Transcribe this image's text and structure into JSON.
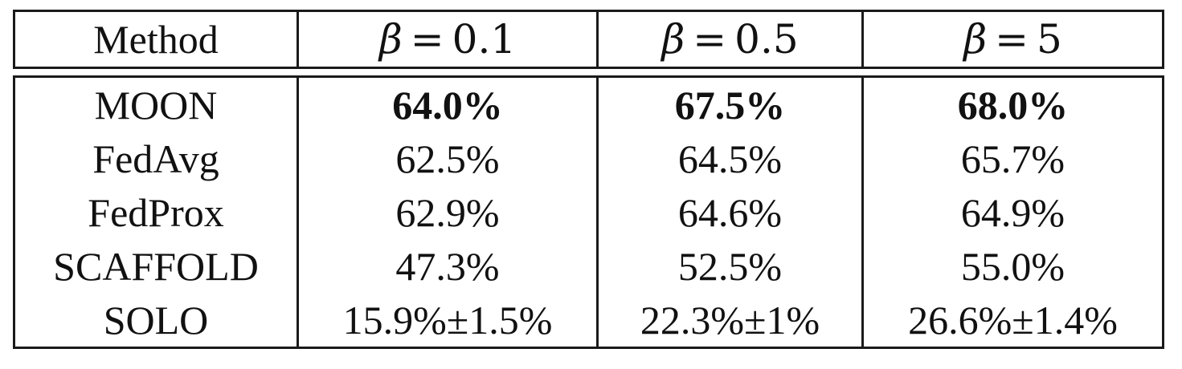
{
  "table": {
    "header": {
      "method": "Method",
      "beta_symbol": "β",
      "equals": "=",
      "beta_values": [
        "0.1",
        "0.5",
        "5"
      ]
    },
    "rows": [
      {
        "method": "MOON",
        "values": [
          "64.0%",
          "67.5%",
          "68.0%"
        ],
        "bold": true
      },
      {
        "method": "FedAvg",
        "values": [
          "62.5%",
          "64.5%",
          "65.7%"
        ],
        "bold": false
      },
      {
        "method": "FedProx",
        "values": [
          "62.9%",
          "64.6%",
          "64.9%"
        ],
        "bold": false
      },
      {
        "method": "SCAFFOLD",
        "values": [
          "47.3%",
          "52.5%",
          "55.0%"
        ],
        "bold": false
      },
      {
        "method": "SOLO",
        "values": [
          "15.9%±1.5%",
          "22.3%±1%",
          "26.6%±1.4%"
        ],
        "bold": false
      }
    ]
  }
}
